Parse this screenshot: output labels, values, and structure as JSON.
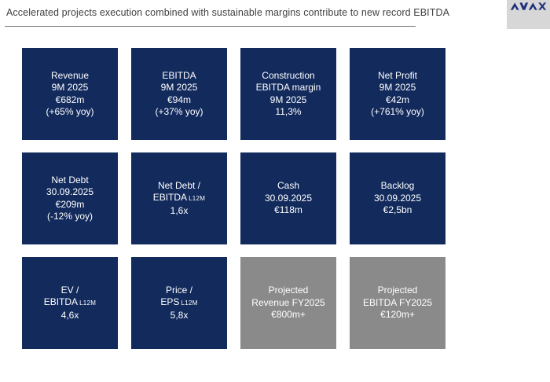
{
  "title": "Accelerated projects execution combined with sustainable margins contribute to new record EBITDA",
  "logo": {
    "text": "AVAX"
  },
  "colors": {
    "tile_navy": "#122a5c",
    "tile_gray": "#8a8a8a",
    "logo_navy": "#1f2f7a",
    "logo_bg": "#d7d7d7",
    "title_text": "#404040",
    "rule": "#808080",
    "tile_text": "#ffffff"
  },
  "tiles": [
    {
      "variant": "navy",
      "lines": [
        {
          "t": "Revenue"
        },
        {
          "t": "9M 2025"
        },
        {
          "t": "€682m"
        },
        {
          "t": "(+65% yoy)"
        }
      ]
    },
    {
      "variant": "navy",
      "lines": [
        {
          "t": "EBITDA"
        },
        {
          "t": "9M 2025"
        },
        {
          "t": "€94m"
        },
        {
          "t": "(+37% yoy)"
        }
      ]
    },
    {
      "variant": "navy",
      "lines": [
        {
          "t": "Construction"
        },
        {
          "t": "EBITDA margin"
        },
        {
          "t": "9M 2025"
        },
        {
          "t": "11,3%"
        }
      ]
    },
    {
      "variant": "navy",
      "lines": [
        {
          "t": "Net Profit"
        },
        {
          "t": "9M 2025"
        },
        {
          "t": "€42m"
        },
        {
          "t": "(+761% yoy)"
        }
      ]
    },
    {
      "variant": "navy",
      "lines": [
        {
          "t": "Net Debt"
        },
        {
          "t": "30.09.2025"
        },
        {
          "t": "€209m"
        },
        {
          "t": "(-12% yoy)"
        }
      ]
    },
    {
      "variant": "navy",
      "lines": [
        {
          "t": "Net Debt /"
        },
        {
          "t": "EBITDA",
          "small": "L12M"
        },
        {
          "t": "1,6x"
        }
      ]
    },
    {
      "variant": "navy",
      "lines": [
        {
          "t": "Cash"
        },
        {
          "t": "30.09.2025"
        },
        {
          "t": "€118m"
        }
      ]
    },
    {
      "variant": "navy",
      "lines": [
        {
          "t": "Backlog"
        },
        {
          "t": "30.09.2025"
        },
        {
          "t": "€2,5bn"
        }
      ]
    },
    {
      "variant": "navy",
      "lines": [
        {
          "t": "EV /"
        },
        {
          "t": "EBITDA",
          "small": "L12M"
        },
        {
          "t": "4,6x"
        }
      ]
    },
    {
      "variant": "navy",
      "lines": [
        {
          "t": "Price /"
        },
        {
          "t": "EPS",
          "small": "L12M"
        },
        {
          "t": "5,8x"
        }
      ]
    },
    {
      "variant": "gray",
      "lines": [
        {
          "t": "Projected"
        },
        {
          "t": "Revenue FY2025"
        },
        {
          "t": "€800m+"
        }
      ]
    },
    {
      "variant": "gray",
      "lines": [
        {
          "t": "Projected"
        },
        {
          "t": "EBITDA FY2025"
        },
        {
          "t": "€120m+"
        }
      ]
    }
  ]
}
